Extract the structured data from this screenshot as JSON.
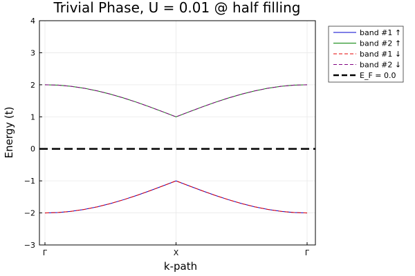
{
  "chart_data": {
    "type": "line",
    "title": "Trivial Phase, U = 0.01 @ half filling",
    "xlabel": "k-path",
    "ylabel": "Energy (t)",
    "xlim": [
      0,
      2
    ],
    "ylim": [
      -3,
      4
    ],
    "x_ticks": [
      {
        "x": 0,
        "label": "Γ"
      },
      {
        "x": 1,
        "label": "X"
      },
      {
        "x": 2,
        "label": "Γ"
      }
    ],
    "y_ticks": [
      {
        "y": -3,
        "label": "−3"
      },
      {
        "y": -2,
        "label": "−2"
      },
      {
        "y": -1,
        "label": "−1"
      },
      {
        "y": 0,
        "label": "0"
      },
      {
        "y": 1,
        "label": "1"
      },
      {
        "y": 2,
        "label": "2"
      },
      {
        "y": 3,
        "label": "3"
      },
      {
        "y": 4,
        "label": "4"
      }
    ],
    "grid": true,
    "legend_position": "top-right outside",
    "x": [
      0,
      0.1,
      0.2,
      0.3,
      0.4,
      0.5,
      0.6,
      0.7,
      0.8,
      0.9,
      1.0,
      1.1,
      1.2,
      1.3,
      1.4,
      1.5,
      1.6,
      1.7,
      1.8,
      1.9,
      2.0
    ],
    "series": [
      {
        "name": "band #1 ↑",
        "color": "#0000cc",
        "dash": "solid",
        "values": [
          -2.0,
          -1.988,
          -1.951,
          -1.891,
          -1.809,
          -1.707,
          -1.588,
          -1.454,
          -1.309,
          -1.156,
          -1.0,
          -1.156,
          -1.309,
          -1.454,
          -1.588,
          -1.707,
          -1.809,
          -1.891,
          -1.951,
          -1.988,
          -2.0
        ]
      },
      {
        "name": "band #2 ↑",
        "color": "#008000",
        "dash": "solid",
        "values": [
          2.0,
          1.988,
          1.951,
          1.891,
          1.809,
          1.707,
          1.588,
          1.454,
          1.309,
          1.156,
          1.0,
          1.156,
          1.309,
          1.454,
          1.588,
          1.707,
          1.809,
          1.891,
          1.951,
          1.988,
          2.0
        ]
      },
      {
        "name": "band #1 ↓",
        "color": "#e60000",
        "dash": "dashed",
        "values": [
          -2.0,
          -1.988,
          -1.951,
          -1.891,
          -1.809,
          -1.707,
          -1.588,
          -1.454,
          -1.309,
          -1.156,
          -1.0,
          -1.156,
          -1.309,
          -1.454,
          -1.588,
          -1.707,
          -1.809,
          -1.891,
          -1.951,
          -1.988,
          -2.0
        ]
      },
      {
        "name": "band #2 ↓",
        "color": "#800080",
        "dash": "dashed",
        "values": [
          2.0,
          1.988,
          1.951,
          1.891,
          1.809,
          1.707,
          1.588,
          1.454,
          1.309,
          1.156,
          1.0,
          1.156,
          1.309,
          1.454,
          1.588,
          1.707,
          1.809,
          1.891,
          1.951,
          1.988,
          2.0
        ]
      },
      {
        "name": "E_F = 0.0",
        "color": "#000000",
        "dash": "longdash",
        "hline": 0.0
      }
    ]
  }
}
